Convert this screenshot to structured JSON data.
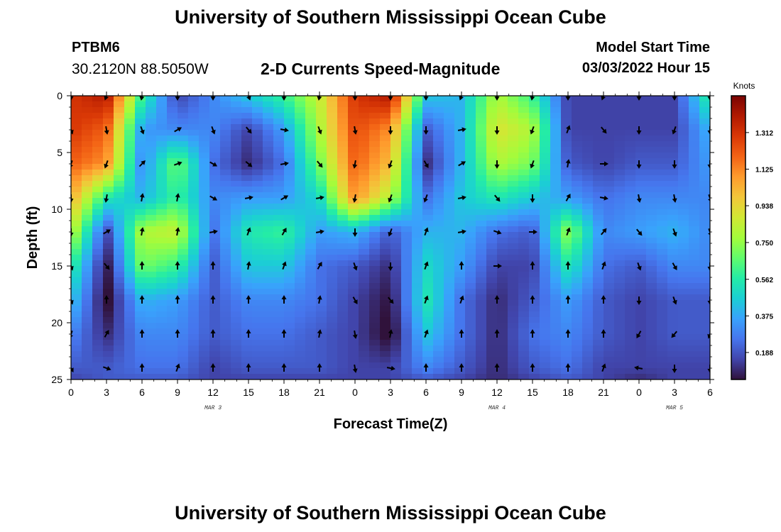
{
  "header": {
    "title": "University of Southern Mississippi Ocean Cube",
    "station": "PTBM6",
    "coords": "30.2120N  88.5050W",
    "plot_title": "2-D Currents Speed-Magnitude",
    "model_start_label": "Model Start Time",
    "model_start_value": "03/03/2022 Hour 15"
  },
  "footer": {
    "title": "University of Southern Mississippi Ocean Cube"
  },
  "chart_data": {
    "type": "heatmap",
    "title": "2-D Currents Speed-Magnitude",
    "xlabel": "Forecast Time(Z)",
    "ylabel": "Depth (ft)",
    "x_tick_labels": [
      "0",
      "3",
      "6",
      "9",
      "12",
      "15",
      "18",
      "21",
      "0",
      "3",
      "6",
      "9",
      "12",
      "15",
      "18",
      "21",
      "0",
      "3",
      "6"
    ],
    "x_range_hours": [
      0,
      54
    ],
    "date_labels": [
      {
        "text": "MAR 3",
        "hour": 12
      },
      {
        "text": "MAR 4",
        "hour": 36
      },
      {
        "text": "MAR 5",
        "hour": 51
      }
    ],
    "y_ticks": [
      0,
      5,
      10,
      15,
      20,
      25
    ],
    "ylim": [
      25,
      0
    ],
    "colorbar": {
      "units": "Knots",
      "min": 0.05,
      "max": 1.5,
      "tick_values": [
        0.188,
        0.375,
        0.562,
        0.75,
        0.938,
        1.125,
        1.312
      ],
      "tick_labels": [
        "0.188",
        "0.375",
        "0.562",
        "0.750",
        "0.938",
        "1.125",
        "1.312"
      ],
      "colors": [
        "#30123b",
        "#4145ab",
        "#4675ed",
        "#39a2fc",
        "#1bcfd4",
        "#24eca6",
        "#61fc6c",
        "#a4fc3b",
        "#d1e834",
        "#f3c63a",
        "#fe9b2d",
        "#f36315",
        "#d93806",
        "#b11901",
        "#7a0403"
      ]
    },
    "grid": {
      "times": [
        0,
        3,
        6,
        9,
        12,
        15,
        18,
        21,
        24,
        27,
        30,
        33,
        36,
        39,
        42,
        45,
        48,
        51,
        54
      ],
      "depths": [
        0,
        3,
        6,
        9,
        12,
        15,
        18,
        21,
        24,
        25
      ],
      "speed_knots": [
        [
          1.3,
          1.4,
          0.6,
          0.15,
          0.3,
          0.45,
          0.6,
          0.85,
          1.3,
          1.4,
          0.45,
          0.4,
          0.8,
          0.6,
          0.15,
          0.15,
          0.15,
          0.15,
          0.6
        ],
        [
          1.3,
          1.2,
          0.35,
          0.3,
          0.3,
          0.15,
          0.35,
          0.8,
          1.25,
          1.1,
          0.2,
          0.4,
          0.9,
          0.8,
          0.15,
          0.15,
          0.15,
          0.15,
          0.4
        ],
        [
          1.2,
          1.1,
          0.3,
          0.7,
          0.25,
          0.1,
          0.25,
          0.7,
          1.2,
          1.0,
          0.1,
          0.4,
          0.8,
          0.7,
          0.2,
          0.15,
          0.2,
          0.2,
          0.35
        ],
        [
          1.05,
          0.55,
          0.4,
          0.6,
          0.3,
          0.35,
          0.35,
          0.5,
          1.1,
          0.8,
          0.25,
          0.45,
          0.55,
          0.45,
          0.35,
          0.25,
          0.3,
          0.3,
          0.3
        ],
        [
          0.85,
          0.15,
          0.8,
          0.85,
          0.25,
          0.55,
          0.6,
          0.35,
          0.4,
          0.2,
          0.4,
          0.4,
          0.25,
          0.2,
          0.75,
          0.3,
          0.35,
          0.4,
          0.3
        ],
        [
          0.6,
          0.05,
          0.7,
          0.6,
          0.2,
          0.45,
          0.45,
          0.25,
          0.2,
          0.1,
          0.5,
          0.35,
          0.15,
          0.15,
          0.55,
          0.25,
          0.2,
          0.3,
          0.3
        ],
        [
          0.45,
          0.02,
          0.4,
          0.35,
          0.2,
          0.3,
          0.3,
          0.25,
          0.15,
          0.05,
          0.55,
          0.25,
          0.1,
          0.2,
          0.35,
          0.2,
          0.15,
          0.2,
          0.2
        ],
        [
          0.3,
          0.1,
          0.3,
          0.3,
          0.2,
          0.25,
          0.25,
          0.2,
          0.15,
          0.02,
          0.45,
          0.25,
          0.1,
          0.25,
          0.3,
          0.2,
          0.15,
          0.2,
          0.2
        ],
        [
          0.2,
          0.2,
          0.25,
          0.25,
          0.15,
          0.2,
          0.2,
          0.2,
          0.15,
          0.15,
          0.3,
          0.2,
          0.1,
          0.2,
          0.25,
          0.15,
          0.15,
          0.15,
          0.15
        ],
        [
          0.15,
          0.2,
          0.2,
          0.2,
          0.15,
          0.15,
          0.15,
          0.15,
          0.15,
          0.15,
          0.2,
          0.15,
          0.1,
          0.15,
          0.2,
          0.15,
          0.1,
          0.15,
          0.15
        ]
      ]
    },
    "vectors": {
      "times": [
        0,
        3,
        6,
        9,
        12,
        15,
        18,
        21,
        24,
        27,
        30,
        33,
        36,
        39,
        42,
        45,
        48,
        51,
        54
      ],
      "depths": [
        0,
        3,
        6,
        9,
        12,
        15,
        18,
        21,
        24
      ],
      "direction_deg": [
        [
          180,
          200,
          190,
          180,
          180,
          160,
          180,
          190,
          180,
          180,
          180,
          200,
          180,
          190,
          180,
          200,
          180,
          180,
          180
        ],
        [
          160,
          170,
          160,
          60,
          160,
          140,
          100,
          160,
          170,
          180,
          180,
          80,
          180,
          200,
          20,
          140,
          180,
          200,
          180
        ],
        [
          200,
          200,
          45,
          70,
          120,
          130,
          80,
          140,
          190,
          200,
          150,
          60,
          180,
          200,
          10,
          90,
          180,
          180,
          180
        ],
        [
          180,
          190,
          10,
          10,
          120,
          80,
          60,
          80,
          190,
          200,
          200,
          80,
          140,
          180,
          30,
          100,
          170,
          170,
          160
        ],
        [
          180,
          60,
          10,
          10,
          80,
          20,
          30,
          80,
          180,
          200,
          20,
          80,
          110,
          90,
          20,
          40,
          140,
          160,
          160
        ],
        [
          160,
          140,
          0,
          0,
          0,
          10,
          20,
          30,
          160,
          180,
          20,
          0,
          90,
          0,
          0,
          20,
          160,
          150,
          180
        ],
        [
          160,
          0,
          0,
          0,
          0,
          0,
          0,
          10,
          150,
          140,
          20,
          20,
          0,
          0,
          0,
          0,
          180,
          160,
          180
        ],
        [
          200,
          30,
          0,
          0,
          0,
          0,
          0,
          10,
          170,
          10,
          20,
          0,
          0,
          0,
          0,
          0,
          210,
          220,
          200
        ],
        [
          150,
          110,
          0,
          20,
          0,
          0,
          0,
          0,
          170,
          100,
          0,
          0,
          0,
          0,
          0,
          20,
          280,
          180,
          180
        ]
      ]
    }
  }
}
